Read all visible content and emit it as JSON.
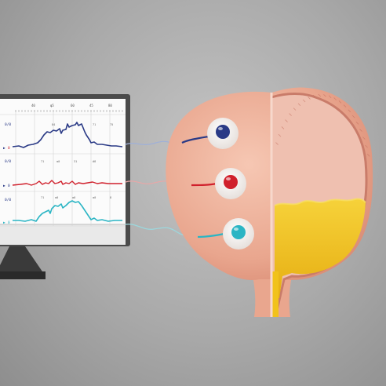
{
  "monitor": {
    "top_ticks": [
      "40",
      "φ5",
      "60",
      "45",
      "80"
    ],
    "channels": [
      {
        "code": "0/0",
        "marker": "▶",
        "marker_text": "0",
        "color": "#2a3a86",
        "peak_labels": [
          "84",
          "71",
          "75"
        ]
      },
      {
        "code": "0/0",
        "marker": "▶",
        "marker_text": "0",
        "color": "#d0202c",
        "peak_labels": [
          "71",
          "α0",
          "31",
          "#8"
        ]
      },
      {
        "code": "0/0",
        "marker": "▶",
        "marker_text": "0",
        "color": "#2bb5c4",
        "peak_labels": [
          "71",
          "α0",
          "α0",
          "α0",
          "8"
        ]
      }
    ]
  },
  "electrodes": [
    {
      "color": "#2a3a86"
    },
    {
      "color": "#d0202c"
    },
    {
      "color": "#2bb5c4"
    }
  ],
  "colors": {
    "bladder_outer": "#e9a68e",
    "bladder_wall": "#c97c6a",
    "bladder_inner": "#efc0b0",
    "urine": "#f1c21b"
  }
}
